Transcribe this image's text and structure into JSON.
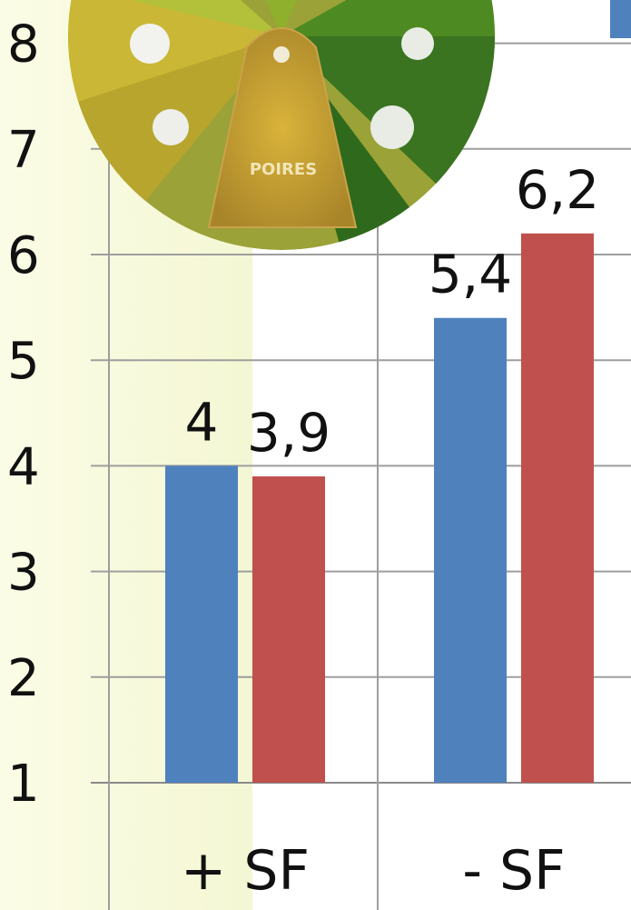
{
  "chart_data": {
    "type": "bar",
    "categories": [
      "+ SF",
      "- SF"
    ],
    "series": [
      {
        "values": [
          4,
          5.4
        ],
        "labels": [
          "4",
          "5,4"
        ],
        "color": "#4f81bd"
      },
      {
        "values": [
          3.9,
          6.2
        ],
        "labels": [
          "3,9",
          "6,2"
        ],
        "color": "#c0504d"
      }
    ],
    "yticks": [
      "1",
      "2",
      "3",
      "4",
      "5",
      "6",
      "7",
      "8"
    ],
    "ylim": [
      1,
      8
    ],
    "grid": true,
    "colors": {
      "highlight_band": "#f7f9dc",
      "photo_greens": [
        "#c8b93a",
        "#a9ba2e",
        "#5f8f22",
        "#2f6a1c"
      ],
      "photo_text": "POIRES"
    }
  }
}
